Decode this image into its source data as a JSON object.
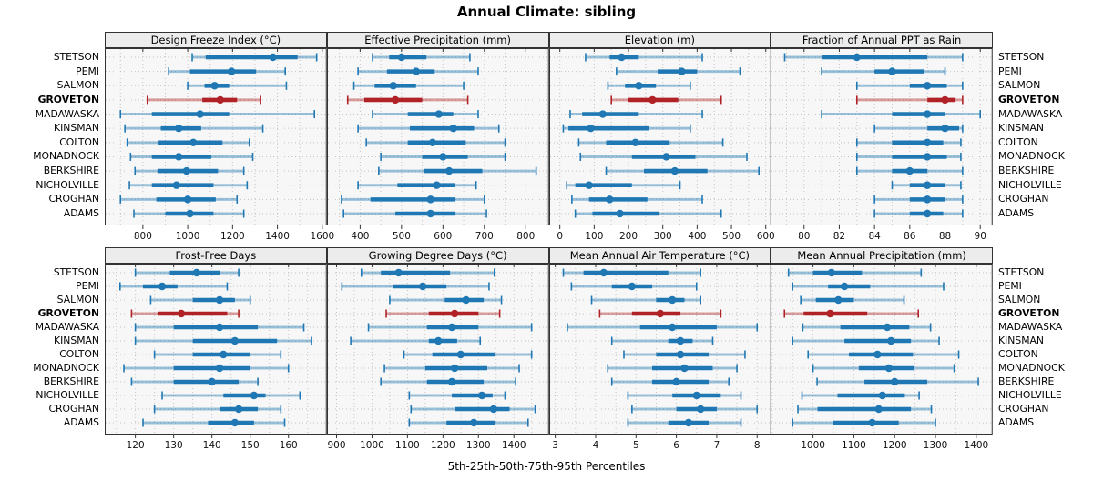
{
  "title": "Annual Climate: sibling",
  "caption": "5th-25th-50th-75th-95th Percentiles",
  "stations": [
    "STETSON",
    "PEMI",
    "SALMON",
    "GROVETON",
    "MADAWASKA",
    "KINSMAN",
    "COLTON",
    "MONADNOCK",
    "BERKSHIRE",
    "NICHOLVILLE",
    "CROGHAN",
    "ADAMS"
  ],
  "highlight_station": "GROVETON",
  "colors": {
    "series": "#1f78b4",
    "highlight": "#b02226",
    "grid": "#c3c3c3",
    "panel_bg": "#f7f7f7",
    "strip_bg": "#ececec",
    "border": "#333333"
  },
  "chart_data": [
    {
      "type": "scatter",
      "mark": "percentile_range",
      "title": "Design Freeze Index (°C)",
      "xlim": [
        630,
        1620
      ],
      "ticks": [
        800,
        1000,
        1200,
        1400,
        1600
      ],
      "minor_step": 100,
      "percentiles": [
        5,
        25,
        50,
        75,
        95
      ],
      "values": [
        [
          1020,
          1080,
          1380,
          1490,
          1575
        ],
        [
          915,
          1010,
          1195,
          1305,
          1435
        ],
        [
          1000,
          1075,
          1120,
          1185,
          1440
        ],
        [
          820,
          1065,
          1145,
          1220,
          1325
        ],
        [
          700,
          840,
          1055,
          1185,
          1565
        ],
        [
          720,
          880,
          960,
          1060,
          1335
        ],
        [
          730,
          870,
          1025,
          1155,
          1275
        ],
        [
          745,
          840,
          960,
          1105,
          1290
        ],
        [
          765,
          865,
          995,
          1135,
          1250
        ],
        [
          740,
          840,
          950,
          1115,
          1265
        ],
        [
          700,
          860,
          1000,
          1125,
          1220
        ],
        [
          760,
          900,
          1010,
          1115,
          1250
        ]
      ]
    },
    {
      "type": "scatter",
      "mark": "percentile_range",
      "title": "Effective Precipitation (mm)",
      "xlim": [
        320,
        856
      ],
      "ticks": [
        400,
        500,
        600,
        700,
        800
      ],
      "minor_step": 50,
      "percentiles": [
        5,
        25,
        50,
        75,
        95
      ],
      "values": [
        [
          430,
          470,
          500,
          560,
          665
        ],
        [
          395,
          465,
          535,
          580,
          685
        ],
        [
          385,
          435,
          480,
          535,
          650
        ],
        [
          370,
          410,
          485,
          550,
          660
        ],
        [
          430,
          515,
          590,
          625,
          685
        ],
        [
          395,
          520,
          625,
          675,
          735
        ],
        [
          415,
          515,
          575,
          655,
          750
        ],
        [
          450,
          550,
          600,
          660,
          750
        ],
        [
          445,
          555,
          615,
          695,
          825
        ],
        [
          395,
          490,
          585,
          630,
          680
        ],
        [
          355,
          425,
          570,
          630,
          700
        ],
        [
          360,
          485,
          570,
          630,
          705
        ]
      ]
    },
    {
      "type": "scatter",
      "mark": "percentile_range",
      "title": "Elevation (m)",
      "xlim": [
        -31,
        616
      ],
      "ticks": [
        0,
        100,
        200,
        300,
        400,
        500,
        600
      ],
      "minor_step": 50,
      "percentiles": [
        5,
        25,
        50,
        75,
        95
      ],
      "values": [
        [
          75,
          145,
          180,
          230,
          415
        ],
        [
          165,
          285,
          355,
          400,
          525
        ],
        [
          140,
          190,
          230,
          280,
          380
        ],
        [
          150,
          200,
          270,
          345,
          470
        ],
        [
          30,
          65,
          125,
          230,
          415
        ],
        [
          10,
          25,
          90,
          260,
          380
        ],
        [
          55,
          135,
          220,
          320,
          475
        ],
        [
          60,
          210,
          310,
          395,
          545
        ],
        [
          135,
          245,
          335,
          430,
          580
        ],
        [
          20,
          45,
          85,
          210,
          350
        ],
        [
          35,
          85,
          145,
          255,
          415
        ],
        [
          45,
          95,
          175,
          290,
          470
        ]
      ]
    },
    {
      "type": "scatter",
      "mark": "percentile_range",
      "title": "Fraction of Annual PPT as Rain",
      "xlim": [
        78.1,
        90.7
      ],
      "ticks": [
        80,
        82,
        84,
        86,
        88,
        90
      ],
      "minor_step": 1,
      "percentiles": [
        5,
        25,
        50,
        75,
        95
      ],
      "values": [
        [
          78.9,
          81,
          83,
          87,
          89
        ],
        [
          81,
          84,
          85,
          86.8,
          88
        ],
        [
          83,
          86,
          87,
          88.1,
          89
        ],
        [
          83,
          87,
          88,
          88.6,
          89
        ],
        [
          81,
          85,
          87,
          88,
          90
        ],
        [
          84,
          87,
          88,
          88.8,
          89
        ],
        [
          83,
          85,
          87,
          87.9,
          88.9
        ],
        [
          83,
          85,
          87,
          88.1,
          88.9
        ],
        [
          83,
          85,
          86,
          87,
          89
        ],
        [
          85,
          86,
          87,
          88,
          88.9
        ],
        [
          84,
          86,
          87,
          88,
          89
        ],
        [
          84,
          86,
          87,
          87.9,
          89
        ]
      ]
    },
    {
      "type": "scatter",
      "mark": "percentile_range",
      "title": "Frost-Free Days",
      "xlim": [
        112,
        170
      ],
      "ticks": [
        120,
        130,
        140,
        150,
        160
      ],
      "minor_step": 5,
      "percentiles": [
        5,
        25,
        50,
        75,
        95
      ],
      "values": [
        [
          120,
          129,
          136,
          142,
          147
        ],
        [
          116,
          122,
          127,
          131,
          144
        ],
        [
          124,
          135,
          142,
          146,
          150
        ],
        [
          119,
          126,
          132,
          144,
          147
        ],
        [
          120,
          130,
          142,
          152,
          164
        ],
        [
          120,
          135,
          146,
          157,
          166
        ],
        [
          125,
          135,
          143,
          150,
          158
        ],
        [
          117,
          130,
          142,
          150,
          160
        ],
        [
          119,
          130,
          140,
          147,
          152
        ],
        [
          127,
          143,
          151,
          154,
          163
        ],
        [
          125,
          142,
          147,
          152,
          158
        ],
        [
          122,
          139,
          146,
          151,
          159
        ]
      ]
    },
    {
      "type": "scatter",
      "mark": "percentile_range",
      "title": "Growing Degree Days (°C)",
      "xlim": [
        873,
        1499
      ],
      "ticks": [
        900,
        1000,
        1100,
        1200,
        1300,
        1400
      ],
      "minor_step": 50,
      "percentiles": [
        5,
        25,
        50,
        75,
        95
      ],
      "values": [
        [
          970,
          1025,
          1075,
          1220,
          1345
        ],
        [
          915,
          1060,
          1143,
          1210,
          1330
        ],
        [
          1050,
          1205,
          1265,
          1315,
          1365
        ],
        [
          1040,
          1160,
          1233,
          1300,
          1360
        ],
        [
          990,
          1155,
          1225,
          1300,
          1450
        ],
        [
          940,
          1160,
          1187,
          1240,
          1305
        ],
        [
          1090,
          1170,
          1250,
          1348,
          1450
        ],
        [
          1035,
          1150,
          1233,
          1325,
          1415
        ],
        [
          1025,
          1155,
          1225,
          1315,
          1405
        ],
        [
          1105,
          1225,
          1310,
          1340,
          1375
        ],
        [
          1110,
          1233,
          1343,
          1388,
          1460
        ],
        [
          1105,
          1210,
          1287,
          1348,
          1440
        ]
      ]
    },
    {
      "type": "scatter",
      "mark": "percentile_range",
      "title": "Mean Annual Air Temperature (°C)",
      "xlim": [
        2.85,
        8.35
      ],
      "ticks": [
        3,
        4,
        5,
        6,
        7,
        8
      ],
      "minor_step": 0.5,
      "percentiles": [
        5,
        25,
        50,
        75,
        95
      ],
      "values": [
        [
          3.2,
          3.7,
          4.2,
          5.8,
          6.6
        ],
        [
          3.4,
          4.4,
          4.9,
          5.4,
          6.5
        ],
        [
          3.9,
          5.5,
          5.9,
          6.2,
          6.6
        ],
        [
          4.1,
          4.9,
          5.6,
          6.1,
          7.1
        ],
        [
          3.3,
          5.1,
          5.9,
          7.0,
          8.0
        ],
        [
          4.4,
          5.8,
          6.1,
          6.4,
          6.9
        ],
        [
          4.7,
          5.5,
          6.1,
          6.8,
          7.7
        ],
        [
          4.3,
          5.4,
          6.2,
          6.9,
          7.5
        ],
        [
          4.4,
          5.4,
          6.0,
          6.8,
          7.3
        ],
        [
          4.8,
          5.9,
          6.5,
          7.1,
          7.6
        ],
        [
          4.9,
          6.0,
          6.6,
          7.0,
          8.0
        ],
        [
          4.8,
          5.8,
          6.3,
          6.8,
          7.6
        ]
      ]
    },
    {
      "type": "scatter",
      "mark": "percentile_range",
      "title": "Mean Annual Precipitation (mm)",
      "xlim": [
        896,
        1440
      ],
      "ticks": [
        1000,
        1100,
        1200,
        1300,
        1400
      ],
      "minor_step": 50,
      "percentiles": [
        5,
        25,
        50,
        75,
        95
      ],
      "values": [
        [
          940,
          1000,
          1045,
          1120,
          1265
        ],
        [
          950,
          1037,
          1077,
          1140,
          1320
        ],
        [
          970,
          1007,
          1062,
          1100,
          1223
        ],
        [
          930,
          977,
          1042,
          1133,
          1258
        ],
        [
          975,
          1067,
          1182,
          1236,
          1288
        ],
        [
          950,
          1077,
          1191,
          1240,
          1309
        ],
        [
          988,
          1088,
          1158,
          1245,
          1357
        ],
        [
          1000,
          1112,
          1186,
          1247,
          1346
        ],
        [
          1010,
          1126,
          1200,
          1280,
          1405
        ],
        [
          973,
          1060,
          1170,
          1225,
          1260
        ],
        [
          963,
          1011,
          1161,
          1240,
          1290
        ],
        [
          950,
          1050,
          1145,
          1210,
          1300
        ]
      ]
    }
  ]
}
